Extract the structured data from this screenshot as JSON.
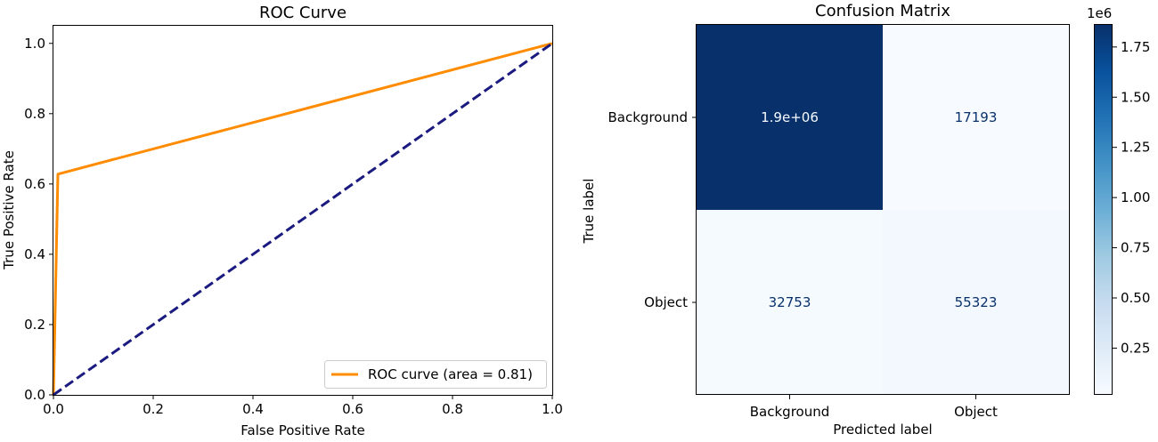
{
  "chart_data": [
    {
      "type": "line",
      "title": "ROC Curve",
      "xlabel": "False Positive Rate",
      "ylabel": "True Positive Rate",
      "xlim": [
        0.0,
        1.0
      ],
      "ylim": [
        0.0,
        1.05
      ],
      "xticks": [
        "0.0",
        "0.2",
        "0.4",
        "0.6",
        "0.8",
        "1.0"
      ],
      "yticks": [
        "0.0",
        "0.2",
        "0.4",
        "0.6",
        "0.8",
        "1.0"
      ],
      "grid": false,
      "legend_position": "lower-right",
      "series": [
        {
          "name": "ROC curve (area = 0.81)",
          "color": "#ff8c00",
          "style": "solid",
          "x": [
            0.0,
            0.009,
            1.0
          ],
          "y": [
            0.0,
            0.628,
            1.0
          ]
        },
        {
          "name": "",
          "color": "#1a1a80",
          "style": "dashed",
          "x": [
            0.0,
            1.0
          ],
          "y": [
            0.0,
            1.0
          ]
        }
      ]
    },
    {
      "type": "heatmap",
      "title": "Confusion Matrix",
      "xlabel": "Predicted label",
      "ylabel": "True label",
      "x_categories": [
        "Background",
        "Object"
      ],
      "y_categories": [
        "Background",
        "Object"
      ],
      "values": [
        [
          1860000,
          17193
        ],
        [
          32753,
          55323
        ]
      ],
      "cell_labels": [
        [
          "1.9e+06",
          "17193"
        ],
        [
          "32753",
          "55323"
        ]
      ],
      "colormap": "Blues",
      "colorbar": {
        "exponent_label": "1e6",
        "ticks": [
          "0.25",
          "0.50",
          "0.75",
          "1.00",
          "1.25",
          "1.50",
          "1.75"
        ],
        "tick_values": [
          0.25,
          0.5,
          0.75,
          1.0,
          1.25,
          1.5,
          1.75
        ],
        "range": [
          0.017193,
          1.86
        ]
      }
    }
  ]
}
